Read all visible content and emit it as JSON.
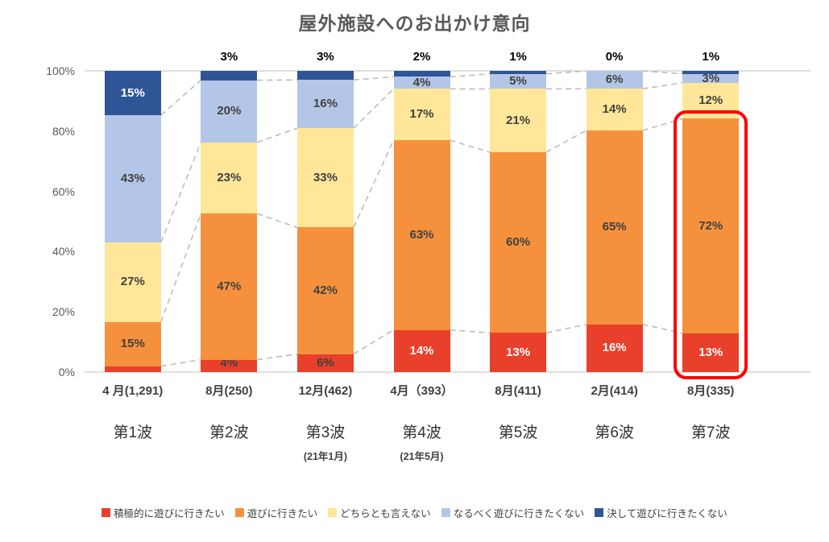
{
  "title": "屋外施設へのお出かけ意向",
  "chart_data": {
    "type": "bar",
    "stacked": true,
    "percent_stacked": true,
    "title": "屋外施設へのお出かけ意向",
    "categories": [
      {
        "label": "4 月(1,291)",
        "wave": "第1波",
        "sub": ""
      },
      {
        "label": "8月(250)",
        "wave": "第2波",
        "sub": ""
      },
      {
        "label": "12月(462)",
        "wave": "第3波",
        "sub": "(21年1月)"
      },
      {
        "label": "4月（393）",
        "wave": "第4波",
        "sub": "(21年5月)"
      },
      {
        "label": "8月(411)",
        "wave": "第5波",
        "sub": ""
      },
      {
        "label": "2月(414)",
        "wave": "第6波",
        "sub": ""
      },
      {
        "label": "8月(335)",
        "wave": "第7波",
        "sub": ""
      }
    ],
    "series": [
      {
        "name": "積極的に遊びに行きたい",
        "color": "#e8402b",
        "values": [
          2,
          4,
          6,
          14,
          13,
          16,
          13
        ]
      },
      {
        "name": "遊びに行きたい",
        "color": "#f5913d",
        "values": [
          15,
          47,
          42,
          63,
          60,
          65,
          72
        ]
      },
      {
        "name": "どちらとも言えない",
        "color": "#ffe699",
        "values": [
          27,
          23,
          33,
          17,
          21,
          14,
          12
        ]
      },
      {
        "name": "なるべく遊びに行きたくない",
        "color": "#b4c6e7",
        "values": [
          43,
          20,
          16,
          4,
          5,
          6,
          3
        ]
      },
      {
        "name": "決して遊びに行きたくない",
        "color": "#2f5597",
        "values": [
          15,
          3,
          3,
          2,
          1,
          0,
          1
        ]
      }
    ],
    "y_ticks": [
      "100%",
      "80%",
      "60%",
      "40%",
      "20%",
      "0%"
    ],
    "ylim": [
      0,
      100
    ],
    "grid": "top-and-bottom-lines-only",
    "series_connector_lines": "dashed-gray",
    "legend_position": "bottom",
    "highlight": {
      "category_index": 6,
      "series_span": 2,
      "color": "#ff0000"
    }
  }
}
